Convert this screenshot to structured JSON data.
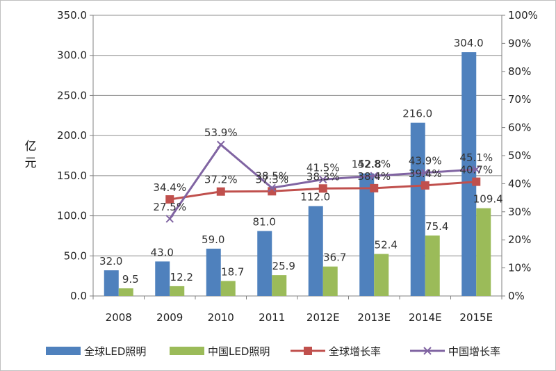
{
  "chart_data": {
    "type": "bar+line",
    "title": "",
    "ylabel": "亿元",
    "ylabel_chars": [
      "亿",
      "元"
    ],
    "categories": [
      "2008",
      "2009",
      "2010",
      "2011",
      "2012E",
      "2013E",
      "2014E",
      "2015E"
    ],
    "left_axis": {
      "min": 0,
      "max": 350,
      "step": 50,
      "ticks": [
        "0.0",
        "50.0",
        "100.0",
        "150.0",
        "200.0",
        "250.0",
        "300.0",
        "350.0"
      ]
    },
    "right_axis": {
      "min": 0,
      "max": 100,
      "step": 10,
      "ticks": [
        "0%",
        "10%",
        "20%",
        "30%",
        "40%",
        "50%",
        "60%",
        "70%",
        "80%",
        "90%",
        "100%"
      ]
    },
    "bar_series": [
      {
        "name": "全球LED照明",
        "color": "#4f81bd",
        "values": [
          32.0,
          43.0,
          59.0,
          81.0,
          112.0,
          152.8,
          216.0,
          304.0
        ],
        "labels": [
          "32.0",
          "43.0",
          "59.0",
          "81.0",
          "112.0",
          "152.8",
          "216.0",
          "304.0"
        ]
      },
      {
        "name": "中国LED照明",
        "color": "#9bbb59",
        "values": [
          9.5,
          12.2,
          18.7,
          25.9,
          36.7,
          52.4,
          75.4,
          109.4
        ],
        "labels": [
          "9.5",
          "12.2",
          "18.7",
          "25.9",
          "36.7",
          "52.4",
          "75.4",
          "109.4"
        ]
      }
    ],
    "line_series": [
      {
        "name": "全球增长率",
        "color": "#c0504d",
        "marker": "square",
        "start_index": 1,
        "values": [
          34.4,
          37.2,
          37.3,
          38.3,
          38.4,
          39.4,
          40.7
        ],
        "labels": [
          "34.4%",
          "37.2%",
          "37.3%",
          "38.3%",
          "38.4%",
          "39.4%",
          "40.7%"
        ]
      },
      {
        "name": "中国增长率",
        "color": "#8064a2",
        "marker": "x",
        "start_index": 1,
        "values": [
          27.5,
          53.9,
          38.5,
          41.5,
          42.8,
          43.9,
          45.1
        ],
        "labels": [
          "27.5%",
          "53.9%",
          "38.5%",
          "41.5%",
          "42.8%",
          "43.9%",
          "45.1%"
        ]
      }
    ],
    "grid": true,
    "legend_position": "bottom",
    "legend": [
      "全球LED照明",
      "中国LED照明",
      "全球增长率",
      "中国增长率"
    ]
  }
}
